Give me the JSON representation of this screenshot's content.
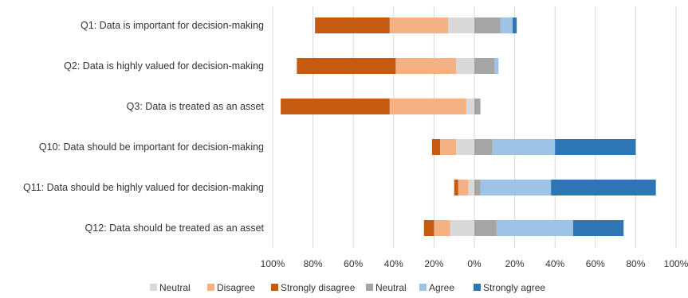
{
  "chart_data": {
    "type": "bar",
    "orientation": "horizontal",
    "stacked": "diverging",
    "categories": [
      "Q1: Data is important for decision-making",
      "Q2: Data is highly valued for decision-making",
      "Q3: Data is treated as an asset",
      "Q10: Data should be important for decision-making",
      "Q11: Data should be highly valued for decision-making",
      "Q12: Data should be treated as an asset"
    ],
    "series": [
      {
        "name": "Neutral",
        "side": "negative",
        "color": "#d9d9d9",
        "values": [
          13,
          9,
          4,
          9,
          3,
          12
        ]
      },
      {
        "name": "Disagree",
        "side": "negative",
        "color": "#f4b183",
        "values": [
          29,
          30,
          38,
          8,
          5,
          8
        ]
      },
      {
        "name": "Strongly disagree",
        "side": "negative",
        "color": "#c55a11",
        "values": [
          37,
          49,
          54,
          4,
          2,
          5
        ]
      },
      {
        "name": "Neutral",
        "side": "positive",
        "color": "#a5a5a5",
        "values": [
          13,
          10,
          3,
          9,
          3,
          11
        ]
      },
      {
        "name": "Agree",
        "side": "positive",
        "color": "#9dc3e6",
        "values": [
          6,
          2,
          0,
          31,
          35,
          38
        ]
      },
      {
        "name": "Strongly agree",
        "side": "positive",
        "color": "#2e75b6",
        "values": [
          2,
          0,
          0,
          40,
          52,
          25
        ]
      }
    ],
    "xlim": [
      -100,
      100
    ],
    "xticks": [
      -100,
      -80,
      -60,
      -40,
      -20,
      0,
      20,
      40,
      60,
      80,
      100
    ],
    "xtick_labels": [
      "100%",
      "80%",
      "60%",
      "40%",
      "20%",
      "0%",
      "20%",
      "40%",
      "60%",
      "80%",
      "100%"
    ],
    "title": "",
    "xlabel": "",
    "ylabel": "",
    "grid": "vertical",
    "legend_position": "bottom"
  }
}
